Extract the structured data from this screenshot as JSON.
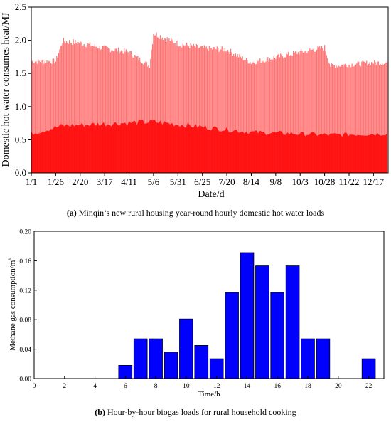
{
  "chart_data": [
    {
      "type": "area",
      "panel": "a",
      "xlabel": "Date/d",
      "ylabel": "Domestic hot water consumes heat/MJ",
      "ylim": [
        0,
        2.5
      ],
      "yticks": [
        0.0,
        0.5,
        1.0,
        1.5,
        2.0,
        2.5
      ],
      "ytick_labels": [
        "0.0",
        "0.5",
        "1.0",
        "1.5",
        "2.0",
        "2.5"
      ],
      "xtick_labels": [
        "1/1",
        "1/26",
        "2/20",
        "3/17",
        "4/11",
        "5/6",
        "5/31",
        "6/25",
        "7/20",
        "8/14",
        "9/8",
        "10/3",
        "10/28",
        "11/22",
        "12/17"
      ],
      "xtick_day_of_year": [
        1,
        26,
        51,
        76,
        101,
        126,
        151,
        176,
        201,
        226,
        251,
        276,
        301,
        326,
        351
      ],
      "xlim_day_of_year": [
        1,
        366
      ],
      "series_color": "#ff0000",
      "peak_envelope": [
        {
          "date": "1/1",
          "peak": 1.7
        },
        {
          "date": "1/26",
          "peak": 1.7
        },
        {
          "date": "2/2",
          "peak": 2.01
        },
        {
          "date": "2/20",
          "peak": 1.98
        },
        {
          "date": "3/17",
          "peak": 1.9
        },
        {
          "date": "4/11",
          "peak": 1.84
        },
        {
          "date": "5/2",
          "peak": 1.63
        },
        {
          "date": "5/6",
          "peak": 2.13
        },
        {
          "date": "5/31",
          "peak": 1.97
        },
        {
          "date": "6/25",
          "peak": 1.9
        },
        {
          "date": "7/20",
          "peak": 1.88
        },
        {
          "date": "8/2",
          "peak": 1.77
        },
        {
          "date": "8/14",
          "peak": 1.68
        },
        {
          "date": "9/8",
          "peak": 1.76
        },
        {
          "date": "10/3",
          "peak": 1.84
        },
        {
          "date": "10/28",
          "peak": 1.91
        },
        {
          "date": "11/3",
          "peak": 1.63
        },
        {
          "date": "11/22",
          "peak": 1.65
        },
        {
          "date": "12/17",
          "peak": 1.68
        },
        {
          "date": "12/31",
          "peak": 1.68
        }
      ],
      "dense_band_top": [
        {
          "date": "1/1",
          "value": 0.6
        },
        {
          "date": "2/2",
          "value": 0.72
        },
        {
          "date": "5/6",
          "value": 0.78
        },
        {
          "date": "8/14",
          "value": 0.62
        },
        {
          "date": "11/3",
          "value": 0.58
        },
        {
          "date": "12/31",
          "value": 0.6
        }
      ]
    },
    {
      "type": "bar",
      "panel": "b",
      "xlabel": "Time/h",
      "ylabel": "Methane gas consumption/m³",
      "ylim": [
        0,
        0.2
      ],
      "xlim": [
        0,
        23
      ],
      "yticks": [
        0.0,
        0.04,
        0.08,
        0.12,
        0.16,
        0.2
      ],
      "ytick_labels": [
        "0.00",
        "0.04",
        "0.08",
        "0.12",
        "0.16",
        "0.20"
      ],
      "xticks": [
        0,
        2,
        4,
        6,
        8,
        10,
        12,
        14,
        16,
        18,
        20,
        22
      ],
      "xtick_labels": [
        "0",
        "2",
        "4",
        "6",
        "8",
        "10",
        "12",
        "14",
        "16",
        "18",
        "20",
        "22"
      ],
      "bar_color": "#0000ff",
      "categories": [
        0,
        1,
        2,
        3,
        4,
        5,
        6,
        7,
        8,
        9,
        10,
        11,
        12,
        13,
        14,
        15,
        16,
        17,
        18,
        19,
        20,
        21,
        22
      ],
      "values": [
        0,
        0,
        0,
        0,
        0,
        0,
        0.018,
        0.054,
        0.054,
        0.036,
        0.081,
        0.045,
        0.027,
        0.117,
        0.171,
        0.153,
        0.117,
        0.153,
        0.054,
        0.054,
        0,
        0,
        0.027
      ]
    }
  ],
  "captions": {
    "a_label": "(a)",
    "a_text": " Minqin’s new rural housing year-round hourly domestic hot water loads",
    "b_label": "(b)",
    "b_text": " Hour-by-hour biogas loads for rural household cooking"
  }
}
